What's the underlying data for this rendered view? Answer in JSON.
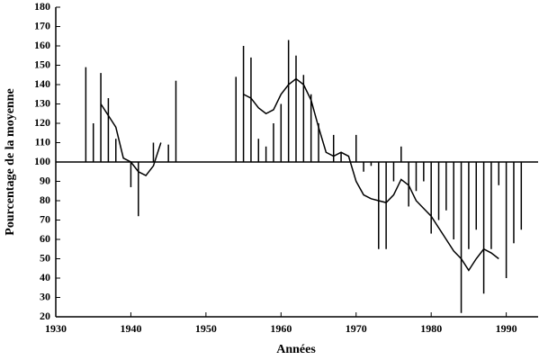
{
  "chart_data": {
    "type": "bar",
    "xlabel": "Années",
    "ylabel": "Pourcentage de la moyenne",
    "xlim": [
      1930,
      1994
    ],
    "ylim": [
      20,
      180
    ],
    "xticks": [
      1930,
      1940,
      1950,
      1960,
      1970,
      1980,
      1990
    ],
    "yticks": [
      20,
      30,
      40,
      50,
      60,
      70,
      80,
      90,
      100,
      110,
      120,
      130,
      140,
      150,
      160,
      170,
      180
    ],
    "baseline": 100,
    "bars": {
      "color": "#000000",
      "x": [
        1934,
        1935,
        1936,
        1937,
        1938,
        1940,
        1941,
        1943,
        1945,
        1946,
        1954,
        1955,
        1956,
        1957,
        1958,
        1959,
        1960,
        1961,
        1962,
        1963,
        1964,
        1965,
        1967,
        1968,
        1970,
        1971,
        1972,
        1973,
        1974,
        1975,
        1976,
        1977,
        1978,
        1979,
        1980,
        1981,
        1982,
        1983,
        1984,
        1985,
        1986,
        1987,
        1988,
        1989,
        1990,
        1991,
        1992
      ],
      "values": [
        149,
        120,
        146,
        133,
        112,
        87,
        72,
        110,
        109,
        142,
        144,
        160,
        154,
        112,
        108,
        120,
        130,
        163,
        155,
        145,
        135,
        120,
        114,
        105,
        114,
        95,
        98,
        55,
        55,
        90,
        108,
        77,
        85,
        90,
        63,
        70,
        75,
        60,
        22,
        55,
        65,
        32,
        55,
        88,
        40,
        58,
        65
      ]
    },
    "line": {
      "color": "#000000",
      "x": [
        1936,
        1937,
        1938,
        1939,
        1940,
        1941,
        1942,
        1943,
        1944,
        1950,
        1955,
        1956,
        1957,
        1958,
        1959,
        1960,
        1961,
        1962,
        1963,
        1964,
        1965,
        1966,
        1967,
        1968,
        1969,
        1970,
        1971,
        1972,
        1973,
        1974,
        1975,
        1976,
        1977,
        1978,
        1979,
        1980,
        1981,
        1982,
        1983,
        1984,
        1985,
        1986,
        1987,
        1988,
        1989
      ],
      "values": [
        130,
        124,
        118,
        102,
        100,
        95,
        93,
        98,
        110,
        null,
        135,
        133,
        128,
        125,
        127,
        135,
        140,
        143,
        140,
        132,
        118,
        105,
        103,
        105,
        103,
        90,
        83,
        81,
        80,
        79,
        83,
        91,
        88,
        80,
        76,
        72,
        66,
        60,
        54,
        50,
        44,
        50,
        55,
        53,
        50
      ]
    }
  }
}
